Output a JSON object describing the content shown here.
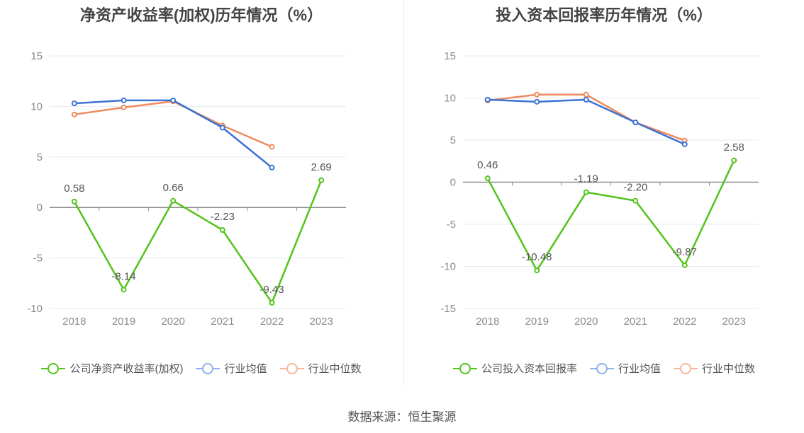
{
  "source_label": "数据来源：恒生聚源",
  "colors": {
    "company": "#52c41a",
    "avg": "#3b73d4",
    "median": "#f08a5d",
    "legend_avg": "#8fb0ea",
    "legend_median": "#f7b79b"
  },
  "chart_data": [
    {
      "type": "line",
      "title": "净资产收益率(加权)历年情况（%）",
      "categories": [
        "2018",
        "2019",
        "2020",
        "2021",
        "2022",
        "2023"
      ],
      "ylim": [
        -10,
        15
      ],
      "yticks": [
        15,
        10,
        5,
        0,
        -5,
        -10
      ],
      "legend_position": "bottom",
      "series": [
        {
          "name": "公司净资产收益率(加权)",
          "key": "company",
          "values": [
            0.58,
            -8.14,
            0.66,
            -2.23,
            -9.43,
            2.69
          ],
          "labels": [
            "0.58",
            "-8.14",
            "0.66",
            "-2.23",
            "-9.43",
            "2.69"
          ]
        },
        {
          "name": "行业均值",
          "key": "avg",
          "values": [
            10.3,
            10.6,
            10.6,
            7.9,
            3.95,
            null
          ]
        },
        {
          "name": "行业中位数",
          "key": "median",
          "values": [
            9.2,
            9.9,
            10.5,
            8.1,
            6.0,
            null
          ]
        }
      ]
    },
    {
      "type": "line",
      "title": "投入资本回报率历年情况（%）",
      "categories": [
        "2018",
        "2019",
        "2020",
        "2021",
        "2022",
        "2023"
      ],
      "ylim": [
        -15,
        15
      ],
      "yticks": [
        15,
        10,
        5,
        0,
        -5,
        -10,
        -15
      ],
      "legend_position": "bottom",
      "series": [
        {
          "name": "公司投入资本回报率",
          "key": "company",
          "values": [
            0.46,
            -10.48,
            -1.19,
            -2.2,
            -9.87,
            2.58
          ],
          "labels": [
            "0.46",
            "-10.48",
            "-1.19",
            "-2.20",
            "-9.87",
            "2.58"
          ]
        },
        {
          "name": "行业均值",
          "key": "avg",
          "values": [
            9.8,
            9.55,
            9.8,
            7.1,
            4.5,
            null
          ]
        },
        {
          "name": "行业中位数",
          "key": "median",
          "values": [
            9.7,
            10.4,
            10.4,
            7.1,
            4.95,
            null
          ]
        }
      ]
    }
  ]
}
